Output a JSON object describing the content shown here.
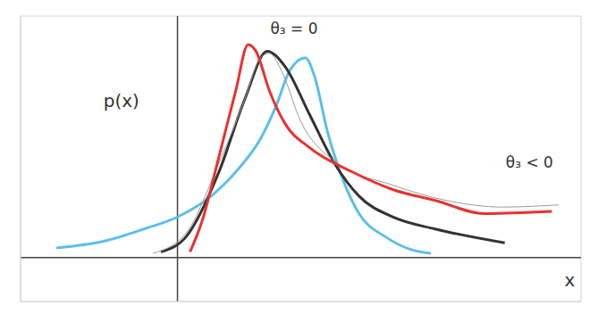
{
  "chart_data": {
    "type": "line",
    "xlim": [
      -7,
      18
    ],
    "ylim": [
      -2,
      11
    ],
    "xticks": [
      -7,
      -6,
      -5,
      -4,
      -3,
      -2,
      -1,
      0,
      1,
      2,
      3,
      4,
      5,
      6,
      7,
      8,
      9,
      10,
      11,
      12,
      13,
      14,
      15,
      16,
      17,
      18
    ],
    "yticks": [
      -2,
      -1,
      0,
      1,
      2,
      3,
      4,
      5,
      6,
      7,
      8,
      9,
      10,
      11
    ],
    "grid": true,
    "tick_labels": false,
    "x_label": "x",
    "y_label": "p(x)",
    "annotations": [
      {
        "text": "θ₃ = 0",
        "x": 5.2,
        "y": 10.4
      },
      {
        "text": "θ₃ < 0",
        "x": 15.7,
        "y": 4.3
      }
    ],
    "series": [
      {
        "color": "#5bbfe8",
        "x": [
          -5.4,
          -3.3,
          -1.5,
          0,
          1.5,
          2.6,
          3.7,
          4.4,
          5,
          5.7,
          6.1,
          6.7,
          7.4,
          8.1,
          9.3,
          10.4,
          11.3
        ],
        "values": [
          0.44,
          0.74,
          1.3,
          1.85,
          2.8,
          3.9,
          5.4,
          6.9,
          8.5,
          9.1,
          8.3,
          5.7,
          3.5,
          2.0,
          0.93,
          0.37,
          0.19
        ]
      },
      {
        "color": "#333333",
        "x": [
          -0.74,
          0.37,
          1.85,
          3,
          4,
          4.8,
          5.9,
          7,
          8.1,
          9.6,
          11.5,
          14.6
        ],
        "values": [
          0.26,
          0.93,
          3.9,
          7.2,
          9.4,
          8.7,
          6.5,
          4.3,
          2.8,
          1.85,
          1.3,
          0.67
        ]
      },
      {
        "color": "#999999",
        "x": [
          -1.1,
          0.37,
          1.85,
          3,
          3.7,
          4.1,
          4.6,
          5.5,
          7,
          9.6,
          12,
          14.5,
          17
        ],
        "values": [
          0.19,
          1.1,
          4.3,
          7.2,
          9.1,
          9.3,
          8.6,
          6.2,
          4.4,
          3.3,
          2.6,
          2.3,
          2.4
        ]
      },
      {
        "color": "#e8322e",
        "x": [
          0.56,
          1.1,
          1.85,
          2.6,
          3.15,
          3.5,
          4.1,
          4.8,
          5.9,
          7.8,
          9.6,
          11.5,
          13.7,
          16.7
        ],
        "values": [
          0.26,
          1.67,
          4.6,
          7.6,
          9.7,
          9.4,
          7.6,
          6.1,
          5.0,
          3.9,
          3.1,
          2.6,
          2.0,
          2.1
        ]
      }
    ]
  }
}
